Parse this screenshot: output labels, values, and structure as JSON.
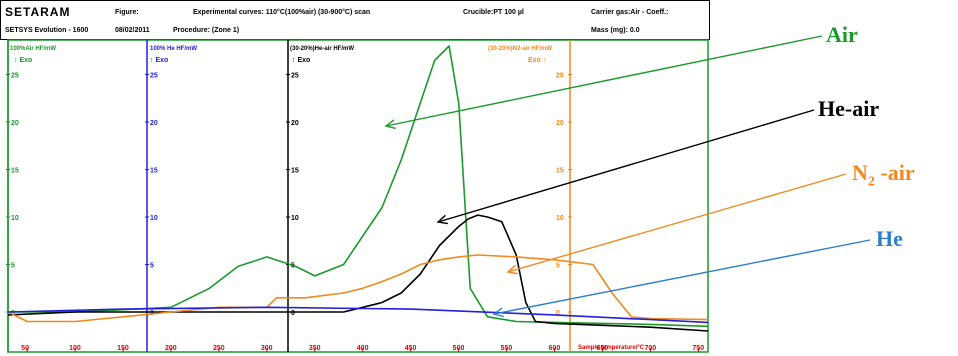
{
  "header": {
    "brand": "SETARAM",
    "subbrand": "SETSYS Evolution - 1600",
    "figure_label": "Figure:",
    "experiment": "Experimental curves: 110°C(100%air) (30-900°C) scan",
    "crucible": "Crucible:PT 100 µl",
    "carrier": "Carrier gas:Air - Coeff.:",
    "date": "08/02/2011",
    "procedure": "Procedure: (Zone 1)",
    "mass": "Mass (mg): 0.0"
  },
  "axis_panels": [
    {
      "title": "100%Air HF/mW",
      "exo": "↑ Exo",
      "color": "#1a9a2a",
      "ticks": [
        "25",
        "20",
        "15",
        "10",
        "5",
        "0"
      ]
    },
    {
      "title": "100% He HF/mW",
      "exo": "↑ Exo",
      "color": "#2222dd",
      "ticks": [
        "25",
        "20",
        "15",
        "10",
        "5",
        "0"
      ]
    },
    {
      "title": "(30-20%)He-air HF/mW",
      "exo": "↑ Exo",
      "color": "#000000",
      "ticks": [
        "25",
        "20",
        "15",
        "10",
        "5",
        "0"
      ]
    },
    {
      "title": "(30-20%)N2-air HF/mW",
      "exo": "Exo ↑",
      "color": "#f08a1e",
      "ticks": [
        "25",
        "20",
        "15",
        "10",
        "5",
        "0"
      ]
    }
  ],
  "x_axis": {
    "tick_labels": [
      "50",
      "100",
      "150",
      "200",
      "250",
      "300",
      "350",
      "400",
      "450",
      "500",
      "550",
      "600",
      "650",
      "700",
      "750"
    ],
    "label": "Sample temperature/°C",
    "color": "#dd0000"
  },
  "annotations": [
    {
      "text": "Air",
      "color": "#1a9a2a"
    },
    {
      "text": "He-air",
      "color": "#000000"
    },
    {
      "text": "N",
      "sub": "2",
      "suffix": " -air",
      "color": "#f08a1e"
    },
    {
      "text": "He",
      "color": "#2b7ec9"
    }
  ],
  "chart_data": {
    "type": "line",
    "x_unit": "°C",
    "y_ticks": [
      0,
      5,
      10,
      15,
      20,
      25
    ],
    "series": [
      {
        "name": "Air",
        "color": "#1a9a2a",
        "x": [
          30,
          100,
          200,
          240,
          270,
          300,
          330,
          350,
          380,
          400,
          420,
          440,
          460,
          475,
          490,
          500,
          512,
          530,
          560,
          600,
          650,
          700,
          760
        ],
        "y": [
          0,
          0,
          0.5,
          2.5,
          4.8,
          5.8,
          4.8,
          3.8,
          5,
          8,
          11,
          16,
          22,
          26.5,
          28,
          22,
          2.5,
          -0.5,
          -1,
          -1.1,
          -1.2,
          -1.3,
          -1.5
        ]
      },
      {
        "name": "He-air",
        "color": "#000000",
        "x": [
          30,
          100,
          200,
          300,
          350,
          380,
          400,
          420,
          440,
          460,
          480,
          500,
          510,
          520,
          530,
          545,
          560,
          570,
          580,
          600,
          650,
          700,
          760
        ],
        "y": [
          -0.3,
          0,
          0,
          0,
          0,
          0,
          0.5,
          1,
          2,
          4,
          7,
          9,
          9.8,
          10.2,
          10,
          9.5,
          6,
          1,
          -1,
          -1.2,
          -1.4,
          -1.6,
          -2
        ]
      },
      {
        "name": "N2-air",
        "color": "#f08a1e",
        "x": [
          30,
          50,
          100,
          150,
          200,
          250,
          300,
          310,
          340,
          380,
          400,
          420,
          440,
          460,
          480,
          500,
          520,
          560,
          600,
          640,
          660,
          680,
          700,
          760
        ],
        "y": [
          0,
          -1,
          -1,
          -0.5,
          0,
          0.5,
          0.5,
          1.5,
          1.5,
          2,
          2.5,
          3.2,
          4,
          5,
          5.5,
          5.8,
          6,
          5.8,
          5.5,
          5,
          2,
          -0.5,
          -0.7,
          -0.8
        ]
      },
      {
        "name": "He",
        "color": "#2222dd",
        "x": [
          30,
          150,
          300,
          450,
          600,
          700,
          760
        ],
        "y": [
          0,
          0.3,
          0.5,
          0.3,
          -0.3,
          -0.8,
          -1.1
        ]
      }
    ]
  }
}
